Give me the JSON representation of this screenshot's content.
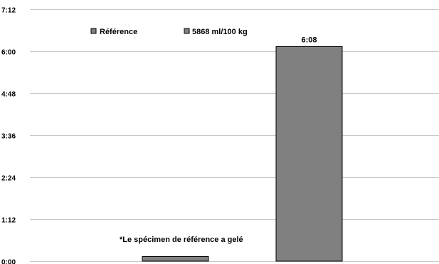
{
  "chart_data": {
    "type": "bar",
    "y_ticks": [
      "0:00",
      "1:12",
      "2:24",
      "3:36",
      "4:48",
      "6:00",
      "7:12"
    ],
    "ylim_minutes": [
      0,
      432
    ],
    "categories": [
      "",
      ""
    ],
    "series": [
      {
        "name": "Référence",
        "value_minutes": 8,
        "label": "",
        "color": "#808080"
      },
      {
        "name": "5868 ml/100 kg",
        "value_minutes": 368,
        "label": "6:08",
        "color": "#808080"
      }
    ],
    "legend": {
      "placement": "top",
      "items": [
        "Référence",
        "5868 ml/100 kg"
      ]
    },
    "annotation": "*Le spécimen de référence a gelé",
    "grid": true
  }
}
